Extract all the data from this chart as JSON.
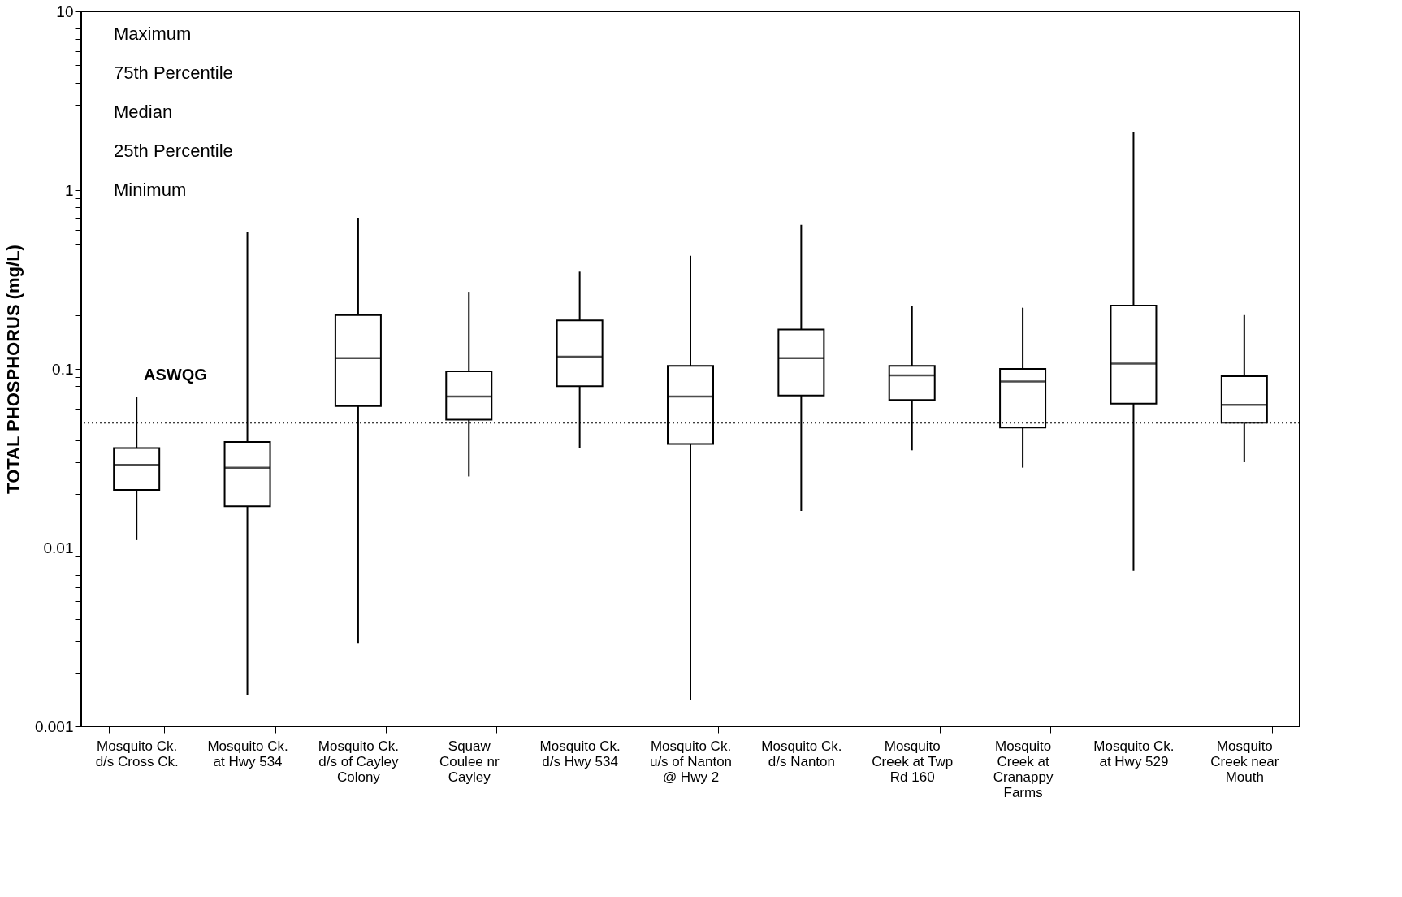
{
  "chart_data": {
    "type": "box",
    "ylabel": "TOTAL PHOSPHORUS (mg/L)",
    "log": true,
    "grid": false,
    "categories": [
      "Mosquito Ck.\nd/s Cross Ck.",
      "Mosquito Ck.\nat Hwy 534",
      "Mosquito Ck.\nd/s of Cayley\nColony",
      "Squaw\nCoulee nr\nCayley",
      "Mosquito Ck.\nd/s Hwy 534",
      "Mosquito Ck.\nu/s of Nanton\n@ Hwy 2",
      "Mosquito Ck.\nd/s Nanton",
      "Mosquito\nCreek at Twp\nRd 160",
      "Mosquito\nCreek at\nCranappy\nFarms",
      "Mosquito Ck.\nat Hwy 529",
      "Mosquito\nCreek near\nMouth"
    ],
    "boxes": [
      {
        "low": 0.011,
        "q1": 0.021,
        "median": 0.029,
        "q3": 0.036,
        "high": 0.07
      },
      {
        "low": 0.0015,
        "q1": 0.017,
        "median": 0.028,
        "q3": 0.039,
        "high": 0.58
      },
      {
        "low": 0.0029,
        "q1": 0.062,
        "median": 0.115,
        "q3": 0.2,
        "high": 0.7
      },
      {
        "low": 0.025,
        "q1": 0.052,
        "median": 0.07,
        "q3": 0.097,
        "high": 0.27
      },
      {
        "low": 0.036,
        "q1": 0.08,
        "median": 0.117,
        "q3": 0.187,
        "high": 0.35
      },
      {
        "low": 0.0014,
        "q1": 0.038,
        "median": 0.07,
        "q3": 0.104,
        "high": 0.43
      },
      {
        "low": 0.016,
        "q1": 0.071,
        "median": 0.115,
        "q3": 0.166,
        "high": 0.64
      },
      {
        "low": 0.035,
        "q1": 0.067,
        "median": 0.092,
        "q3": 0.104,
        "high": 0.226
      },
      {
        "low": 0.028,
        "q1": 0.047,
        "median": 0.085,
        "q3": 0.1,
        "high": 0.22
      },
      {
        "low": 0.0074,
        "q1": 0.064,
        "median": 0.107,
        "q3": 0.226,
        "high": 2.1
      },
      {
        "low": 0.03,
        "q1": 0.05,
        "median": 0.063,
        "q3": 0.091,
        "high": 0.2
      }
    ],
    "ylim": [
      0.001,
      10
    ],
    "yticks": [
      0.001,
      {
        "value": 0.002,
        "label": null
      },
      {
        "value": 0.003,
        "label": null
      },
      {
        "value": 0.004,
        "label": null
      },
      {
        "value": 0.005,
        "label": null
      },
      {
        "value": 0.006,
        "label": null
      },
      {
        "value": 0.007,
        "label": null
      },
      {
        "value": 0.008,
        "label": null
      },
      {
        "value": 0.009,
        "label": null
      },
      0.01,
      {
        "value": 0.02,
        "label": null
      },
      {
        "value": 0.03,
        "label": null
      },
      {
        "value": 0.04,
        "label": null
      },
      {
        "value": 0.05,
        "label": null
      },
      {
        "value": 0.06,
        "label": null
      },
      {
        "value": 0.07,
        "label": null
      },
      {
        "value": 0.08,
        "label": null
      },
      {
        "value": 0.09,
        "label": null
      },
      0.1,
      {
        "value": 0.2,
        "label": null
      },
      {
        "value": 0.3,
        "label": null
      },
      {
        "value": 0.4,
        "label": null
      },
      {
        "value": 0.5,
        "label": null
      },
      {
        "value": 0.6,
        "label": null
      },
      {
        "value": 0.7,
        "label": null
      },
      {
        "value": 0.8,
        "label": null
      },
      {
        "value": 0.9,
        "label": null
      },
      1,
      {
        "value": 2,
        "label": null
      },
      {
        "value": 3,
        "label": null
      },
      {
        "value": 4,
        "label": null
      },
      {
        "value": 5,
        "label": null
      },
      {
        "value": 6,
        "label": null
      },
      {
        "value": 7,
        "label": null
      },
      {
        "value": 8,
        "label": null
      },
      {
        "value": 9,
        "label": null
      },
      10
    ],
    "ref_lines": [
      {
        "axis": "y",
        "value": 0.05,
        "label": "ASWQG",
        "line_style": "dotted"
      }
    ],
    "annotations": [
      "Maximum",
      "75th Percentile",
      "Median",
      "25th Percentile",
      "Minimum"
    ]
  }
}
